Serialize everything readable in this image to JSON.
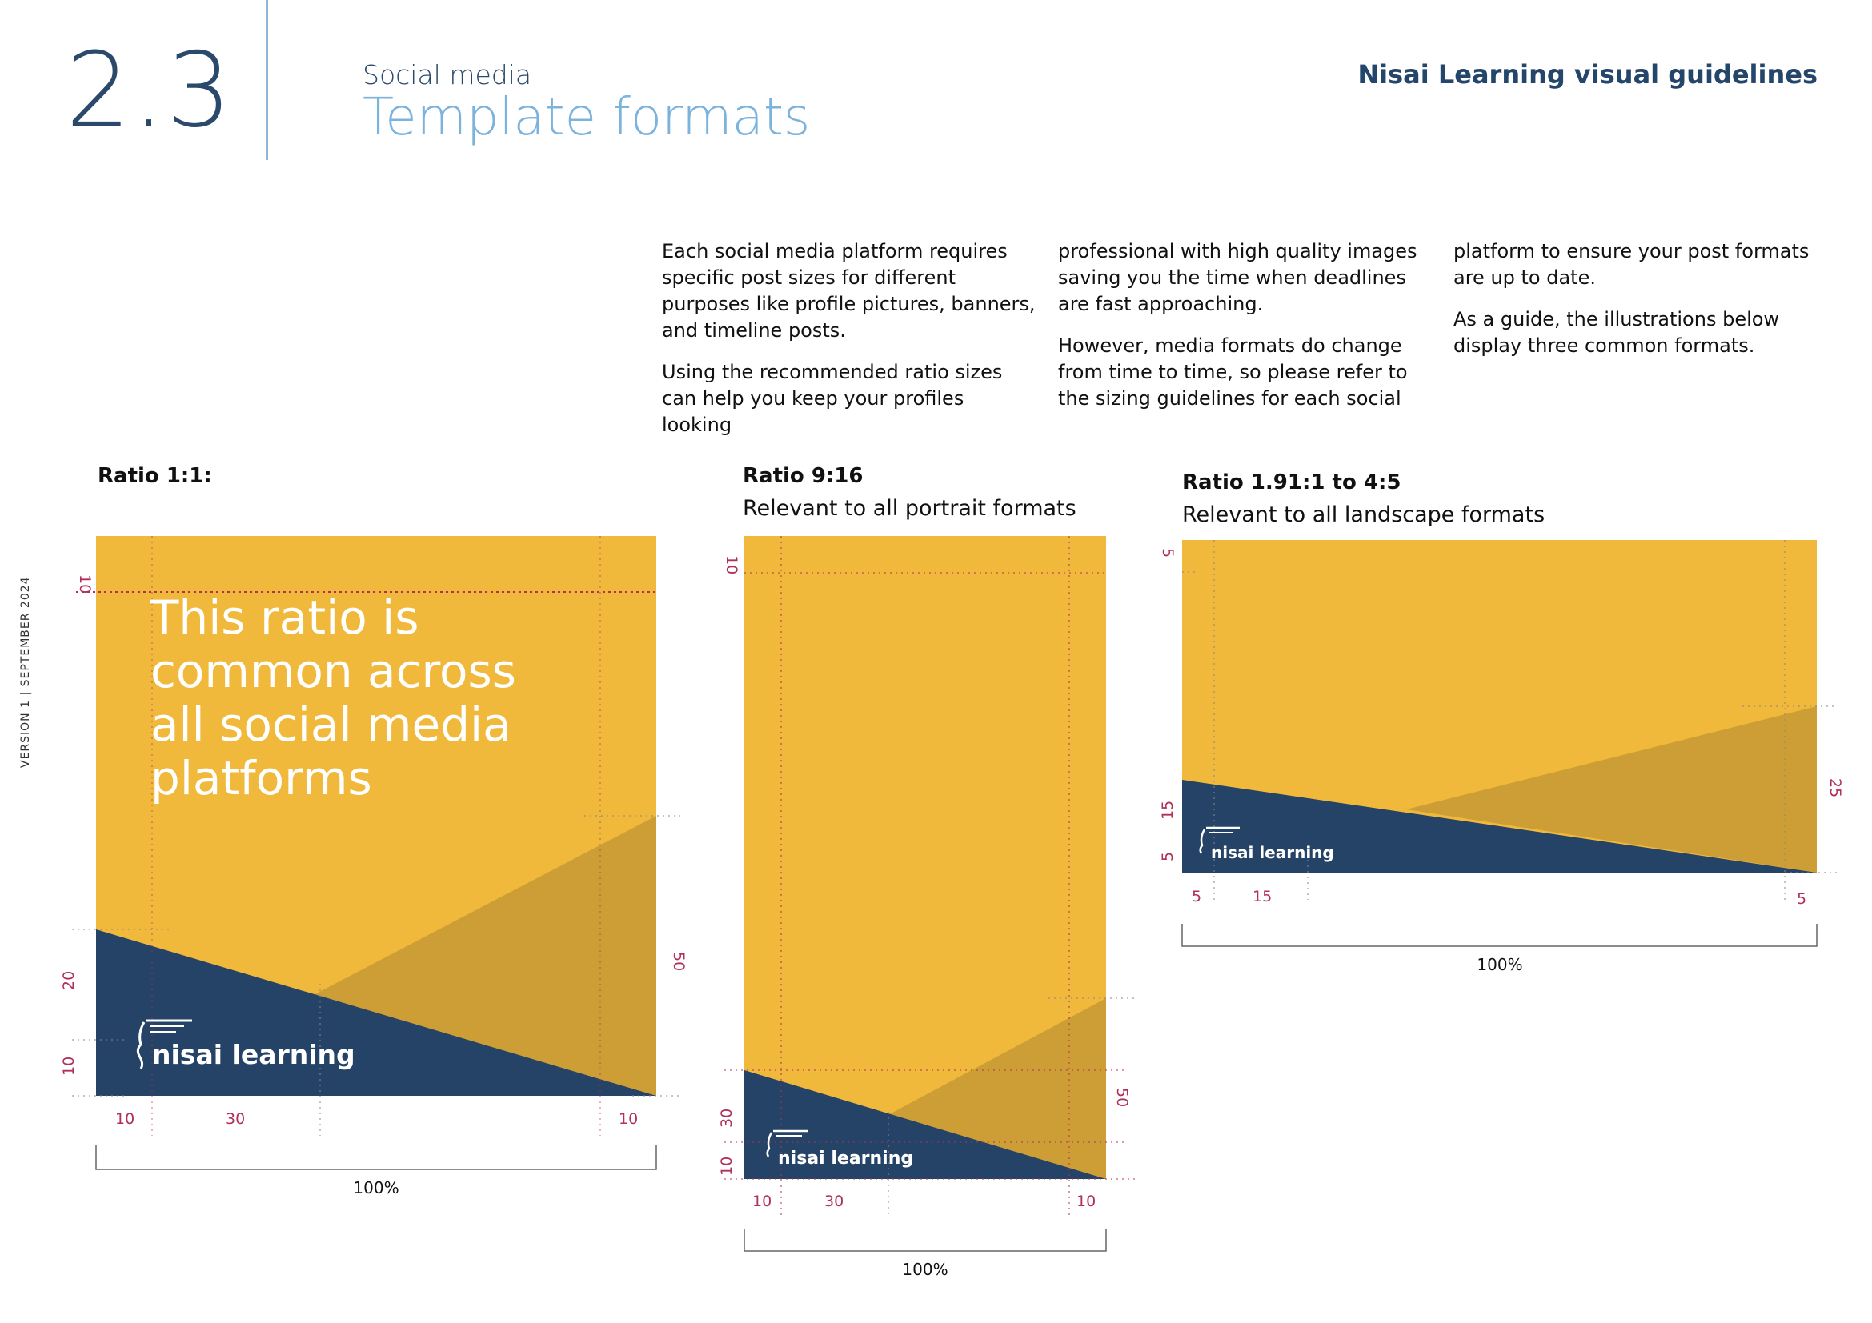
{
  "header": {
    "section_number": "2.3",
    "kicker": "Social media",
    "title": "Template formats",
    "brand": "Nisai Learning visual guidelines"
  },
  "side_label": "VERSION 1  |  SEPTEMBER 2024",
  "intro": {
    "col1": [
      "Each social media platform requires specific post sizes for different purposes like profile pictures, banners, and timeline posts.",
      "Using the recommended ratio sizes can help you keep your profiles looking"
    ],
    "col2": [
      "professional with high quality images saving you the time when deadlines are fast approaching.",
      "However, media formats do change from time to time, so please refer to the sizing guidelines for each social"
    ],
    "col3": [
      "platform to ensure your post formats are up to date.",
      "As a guide, the illustrations below display three common formats."
    ]
  },
  "colors": {
    "yellow": "#f0b93c",
    "dark_yellow": "#cc9e35",
    "navy": "#244366",
    "guide": "#b0305a"
  },
  "formats": [
    {
      "title": "Ratio 1:1:",
      "subtitle": "",
      "headline": [
        "This ratio is",
        "common across",
        "all social media",
        "platforms"
      ],
      "logo": "nisai learning",
      "measures": {
        "top": "10",
        "left_upper": "20",
        "left_lower": "10",
        "right": "50",
        "bottom": [
          "10",
          "30",
          "10"
        ]
      },
      "width_label": "100%"
    },
    {
      "title": "Ratio 9:16",
      "subtitle": "Relevant to all portrait formats",
      "logo": "nisai learning",
      "measures": {
        "top": "10",
        "left_upper": "30",
        "left_lower": "10",
        "right": "50",
        "bottom": [
          "10",
          "30",
          "10"
        ]
      },
      "width_label": "100%"
    },
    {
      "title": "Ratio 1.91:1 to 4:5",
      "subtitle": "Relevant to all landscape formats",
      "logo": "nisai learning",
      "measures": {
        "top": "5",
        "left_upper": "15",
        "left_lower": "5",
        "right": "25",
        "bottom": [
          "5",
          "15",
          "5"
        ]
      },
      "width_label": "100%"
    }
  ]
}
